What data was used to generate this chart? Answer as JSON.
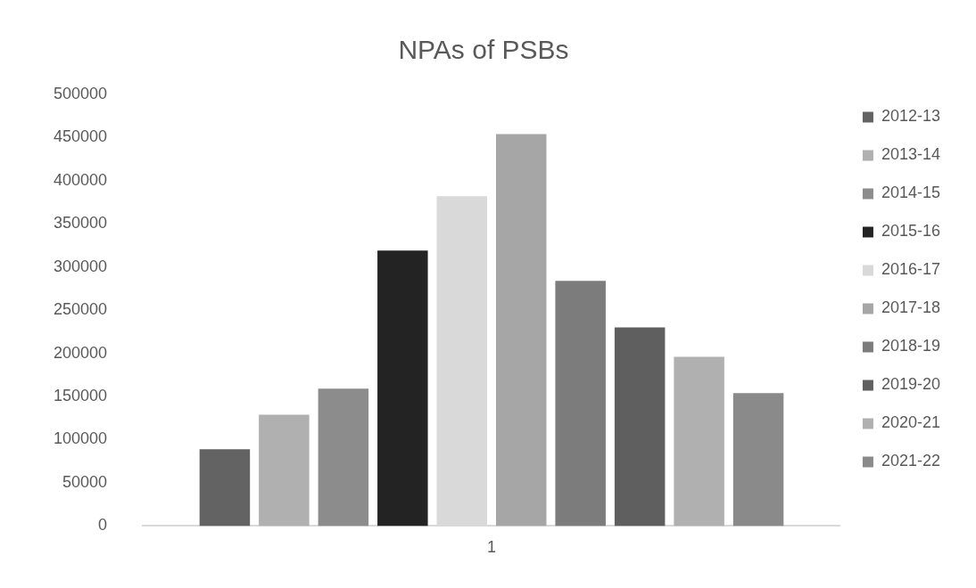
{
  "chart_data": {
    "type": "bar",
    "title": "NPAs of PSBs",
    "categories": [
      "1"
    ],
    "series": [
      {
        "name": "2012-13",
        "color": "#636363",
        "values": [
          89000
        ]
      },
      {
        "name": "2013-14",
        "color": "#b0b0b0",
        "values": [
          129000
        ]
      },
      {
        "name": "2014-15",
        "color": "#8c8c8c",
        "values": [
          159000
        ]
      },
      {
        "name": "2015-16",
        "color": "#232323",
        "values": [
          319000
        ]
      },
      {
        "name": "2016-17",
        "color": "#d9d9d9",
        "values": [
          382000
        ]
      },
      {
        "name": "2017-18",
        "color": "#a6a6a6",
        "values": [
          454000
        ]
      },
      {
        "name": "2018-19",
        "color": "#7c7c7c",
        "values": [
          284000
        ]
      },
      {
        "name": "2019-20",
        "color": "#5f5f5f",
        "values": [
          230000
        ]
      },
      {
        "name": "2020-21",
        "color": "#b0b0b0",
        "values": [
          196000
        ]
      },
      {
        "name": "2021-22",
        "color": "#8a8a8a",
        "values": [
          154000
        ]
      }
    ],
    "ylim": [
      0,
      500000
    ],
    "yticks": [
      0,
      50000,
      100000,
      150000,
      200000,
      250000,
      300000,
      350000,
      400000,
      450000,
      500000
    ],
    "grid": false,
    "legend": "right"
  }
}
